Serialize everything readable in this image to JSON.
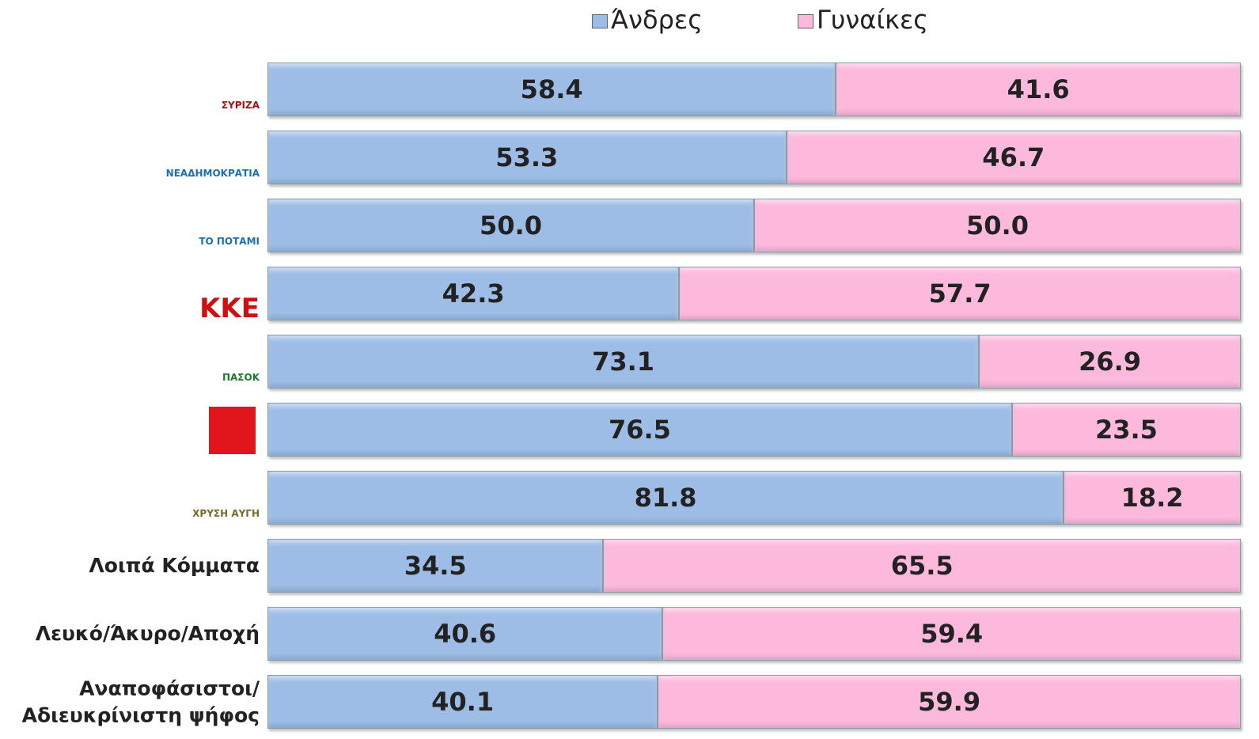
{
  "chart_data": {
    "type": "stacked-bar-horizontal",
    "categories": [
      "ΣΥΡΙΖΑ",
      "ΝΕΑΔΗΜΟΚΡΑΤΙΑ",
      "ΤΟ ΠΟΤΑΜΙ",
      "ΚΚΕ",
      "ΠΑΣΟΚ",
      null,
      "ΧΡΥΣΗ ΑΥΓΗ",
      "Λοιπά Κόμματα",
      "Λευκό/Άκυρο/Αποχή",
      "Αναποφάσιστοι/\nΑδιευκρίνιστη ψήφος"
    ],
    "xlim": [
      0,
      100
    ],
    "legend": "top",
    "series": [
      {
        "name": "Άνδρες",
        "color": "#9dbde6",
        "values": [
          58.4,
          53.3,
          50.0,
          42.3,
          73.1,
          76.5,
          81.8,
          34.5,
          40.6,
          40.1
        ],
        "value_labels": [
          "58.4",
          "53.3",
          "50.0",
          "42.3",
          "73.1",
          "76.5",
          "81.8",
          "34.5",
          "40.6",
          "40.1"
        ]
      },
      {
        "name": "Γυναίκες",
        "color": "#fdb9dc",
        "values": [
          41.6,
          46.7,
          50.0,
          57.7,
          26.9,
          23.5,
          18.2,
          65.5,
          59.4,
          59.9
        ],
        "value_labels": [
          "41.6",
          "46.7",
          "50.0",
          "57.7",
          "26.9",
          "23.5",
          "18.2",
          "65.5",
          "59.4",
          "59.9"
        ]
      }
    ]
  }
}
